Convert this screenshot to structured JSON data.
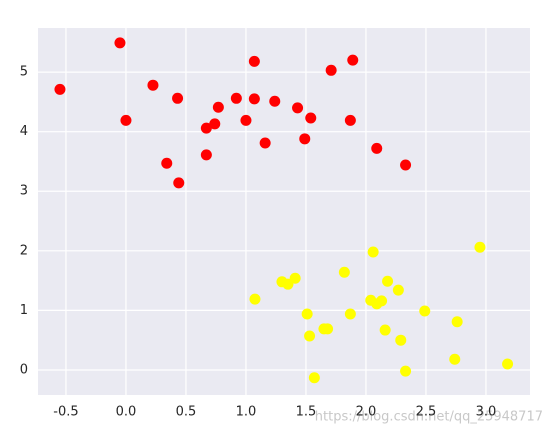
{
  "chart_data": {
    "type": "scatter",
    "series": [
      {
        "color": "#ff0000",
        "x": [
          -0.55,
          -0.05,
          0.0,
          0.225,
          0.34,
          0.43,
          0.44,
          0.67,
          0.67,
          0.74,
          0.77,
          0.92,
          1.0,
          1.07,
          1.07,
          1.16,
          1.24,
          1.43,
          1.49,
          1.54,
          1.71,
          1.87,
          1.89,
          2.09,
          2.33
        ],
        "values": [
          4.71,
          5.49,
          4.19,
          4.78,
          3.47,
          4.56,
          3.14,
          4.06,
          3.61,
          4.13,
          4.41,
          4.56,
          4.19,
          5.18,
          4.55,
          3.81,
          4.51,
          4.4,
          3.88,
          4.23,
          5.03,
          4.19,
          5.2,
          3.72,
          3.44
        ]
      },
      {
        "color": "#ffff00",
        "x": [
          1.075,
          1.3,
          1.35,
          1.41,
          1.51,
          1.53,
          1.57,
          1.65,
          1.68,
          1.82,
          1.87,
          2.06,
          2.04,
          2.09,
          2.13,
          2.16,
          2.18,
          2.27,
          2.29,
          2.33,
          2.49,
          2.74,
          2.76,
          2.95,
          3.18
        ],
        "values": [
          1.19,
          1.48,
          1.44,
          1.54,
          0.94,
          0.57,
          -0.13,
          0.69,
          0.69,
          1.64,
          0.94,
          1.98,
          1.17,
          1.11,
          1.16,
          0.67,
          1.49,
          1.34,
          0.5,
          -0.02,
          0.99,
          0.18,
          0.81,
          2.06,
          0.1
        ]
      }
    ],
    "xlim": [
      -0.733,
      3.367
    ],
    "ylim": [
      -0.42,
      5.74
    ],
    "xticks": [
      -0.5,
      {
        "value": 0,
        "label": "0.0"
      },
      0.5,
      {
        "value": 1,
        "label": "1.0"
      },
      1.5,
      {
        "value": 2,
        "label": "2.0"
      },
      2.5,
      {
        "value": 3,
        "label": "3.0"
      }
    ],
    "yticks": [
      0,
      1,
      2,
      3,
      4,
      5
    ],
    "grid": true,
    "watermark": "https://blog.csdn.net/qq_25948717"
  }
}
